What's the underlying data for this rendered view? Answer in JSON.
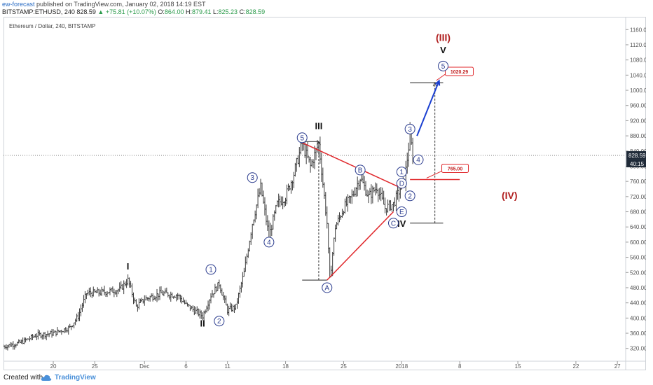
{
  "header": {
    "author": "ew-forecast",
    "published_text": "published on TradingView.com, January 02, 2018 14:19 EST",
    "symbol": "BITSTAMP:ETHUSD, 240",
    "last": "828.59",
    "change": "▲ +75.81 (+10.07%)",
    "o_label": "O:",
    "o": "864.00",
    "h_label": "H:",
    "h": "879.41",
    "l_label": "L:",
    "l": "825.23",
    "c_label": "C:",
    "c": "828.59"
  },
  "chart_title": "Ethereum / Dollar, 240, BITSTAMP",
  "footer": {
    "created": "Created with",
    "brand": "TradingView"
  },
  "colors": {
    "triangle": "#e0272b",
    "target_arrow": "#1a3fd1",
    "wave_red": "#b01e1e",
    "circle": "#2b3c8e",
    "price_label_bg": "#1f2a38"
  },
  "chart_data": {
    "type": "ohlc",
    "title": "Ethereum / Dollar, 240, BITSTAMP",
    "y_axis": {
      "position": "right",
      "range": [
        290,
        1190
      ],
      "ticks": [
        "320.00",
        "360.00",
        "400.00",
        "440.00",
        "480.00",
        "520.00",
        "560.00",
        "600.00",
        "640.00",
        "680.00",
        "720.00",
        "760.00",
        "800.00",
        "840.00",
        "880.00",
        "920.00",
        "960.00",
        "1000.00",
        "1040.00",
        "1080.00",
        "1120.00",
        "1160.00"
      ]
    },
    "x_axis": {
      "range": [
        "2017-11-14",
        "2018-01-28"
      ],
      "ticks": [
        {
          "label": "20",
          "date": "2017-11-20"
        },
        {
          "label": "25",
          "date": "2017-11-25"
        },
        {
          "label": "Dec",
          "date": "2017-12-01"
        },
        {
          "label": "6",
          "date": "2017-12-06"
        },
        {
          "label": "11",
          "date": "2017-12-11"
        },
        {
          "label": "18",
          "date": "2017-12-18"
        },
        {
          "label": "25",
          "date": "2017-12-25"
        },
        {
          "label": "2018",
          "date": "2018-01-01"
        },
        {
          "label": "8",
          "date": "2018-01-08"
        },
        {
          "label": "15",
          "date": "2018-01-15"
        },
        {
          "label": "22",
          "date": "2018-01-22"
        },
        {
          "label": "27",
          "date": "2018-01-27"
        }
      ]
    },
    "price_path": [
      {
        "date": "2017-11-14",
        "price": 325
      },
      {
        "date": "2017-11-16",
        "price": 335
      },
      {
        "date": "2017-11-18",
        "price": 355
      },
      {
        "date": "2017-11-20",
        "price": 360
      },
      {
        "date": "2017-11-22",
        "price": 375
      },
      {
        "date": "2017-11-23",
        "price": 405
      },
      {
        "date": "2017-11-24",
        "price": 465
      },
      {
        "date": "2017-11-26",
        "price": 468
      },
      {
        "date": "2017-11-28",
        "price": 475
      },
      {
        "date": "2017-11-29",
        "price": 500
      },
      {
        "date": "2017-11-30",
        "price": 430
      },
      {
        "date": "2017-12-01",
        "price": 450
      },
      {
        "date": "2017-12-03",
        "price": 465
      },
      {
        "date": "2017-12-05",
        "price": 460
      },
      {
        "date": "2017-12-06",
        "price": 435
      },
      {
        "date": "2017-12-07",
        "price": 420
      },
      {
        "date": "2017-12-08",
        "price": 405
      },
      {
        "date": "2017-12-09",
        "price": 460
      },
      {
        "date": "2017-12-10",
        "price": 490
      },
      {
        "date": "2017-12-11",
        "price": 420
      },
      {
        "date": "2017-12-12",
        "price": 430
      },
      {
        "date": "2017-12-13",
        "price": 520
      },
      {
        "date": "2017-12-14",
        "price": 650
      },
      {
        "date": "2017-12-15",
        "price": 745
      },
      {
        "date": "2017-12-16",
        "price": 615
      },
      {
        "date": "2017-12-17",
        "price": 700
      },
      {
        "date": "2017-12-18",
        "price": 720
      },
      {
        "date": "2017-12-19",
        "price": 780
      },
      {
        "date": "2017-12-20",
        "price": 860
      },
      {
        "date": "2017-12-21",
        "price": 800
      },
      {
        "date": "2017-12-22",
        "price": 860
      },
      {
        "date": "2017-12-23",
        "price": 650
      },
      {
        "date": "2017-12-23",
        "price": 500
      },
      {
        "date": "2017-12-24",
        "price": 640
      },
      {
        "date": "2017-12-25",
        "price": 690
      },
      {
        "date": "2017-12-26",
        "price": 720
      },
      {
        "date": "2017-12-27",
        "price": 770
      },
      {
        "date": "2017-12-28",
        "price": 720
      },
      {
        "date": "2017-12-29",
        "price": 745
      },
      {
        "date": "2017-12-30",
        "price": 690
      },
      {
        "date": "2017-12-31",
        "price": 700
      },
      {
        "date": "2018-01-01",
        "price": 750
      },
      {
        "date": "2018-01-01",
        "price": 760
      },
      {
        "date": "2018-01-02",
        "price": 880
      },
      {
        "date": "2018-01-02",
        "price": 828.59
      }
    ],
    "wave_labels": [
      {
        "text": "I",
        "date": "2017-11-29",
        "price": 528
      },
      {
        "text": "II",
        "date": "2017-12-08",
        "price": 378
      },
      {
        "text": "III",
        "date": "2017-12-22",
        "price": 898
      },
      {
        "text": "IV",
        "date": "2018-01-01",
        "price": 640
      },
      {
        "text": "V",
        "date": "2018-01-06",
        "price": 1098
      },
      {
        "text": "(III)",
        "date": "2018-01-06",
        "price": 1130
      },
      {
        "text": "(IV)",
        "date": "2018-01-14",
        "price": 714
      }
    ],
    "circled_labels": [
      {
        "text": "1",
        "date": "2017-12-09",
        "price": 528
      },
      {
        "text": "2",
        "date": "2017-12-10",
        "price": 392
      },
      {
        "text": "3",
        "date": "2017-12-14",
        "price": 770
      },
      {
        "text": "4",
        "date": "2017-12-16",
        "price": 600
      },
      {
        "text": "5",
        "date": "2017-12-20",
        "price": 875
      },
      {
        "text": "A",
        "date": "2017-12-23",
        "price": 480
      },
      {
        "text": "B",
        "date": "2017-12-27",
        "price": 790
      },
      {
        "text": "C",
        "date": "2017-12-31",
        "price": 650
      },
      {
        "text": "D",
        "date": "2018-01-01",
        "price": 755
      },
      {
        "text": "E",
        "date": "2018-01-01",
        "price": 680
      },
      {
        "text": "1",
        "date": "2018-01-01",
        "price": 785
      },
      {
        "text": "2",
        "date": "2018-01-02",
        "price": 722
      },
      {
        "text": "3",
        "date": "2018-01-02",
        "price": 898
      },
      {
        "text": "4",
        "date": "2018-01-03",
        "price": 817
      },
      {
        "text": "5",
        "date": "2018-01-06",
        "price": 1064
      }
    ],
    "triangle_lines": [
      [
        {
          "date": "2017-12-20",
          "price": 862
        },
        {
          "date": "2018-01-01",
          "price": 742
        }
      ],
      [
        {
          "date": "2017-12-23",
          "price": 500
        },
        {
          "date": "2017-12-31",
          "price": 680
        }
      ]
    ],
    "horizontal_segments": [
      {
        "from": "2017-12-20",
        "to": "2017-12-22",
        "price": 865
      },
      {
        "from": "2017-12-20",
        "to": "2017-12-23",
        "price": 500
      },
      {
        "from": "2018-01-02",
        "to": "2018-01-06",
        "price": 650
      },
      {
        "from": "2018-01-02",
        "to": "2018-01-06",
        "price": 1020
      }
    ],
    "vertical_measures": [
      {
        "date": "2017-12-22",
        "from": 500,
        "to": 865
      },
      {
        "date": "2018-01-05",
        "from": 650,
        "to": 1020
      }
    ],
    "price_levels": [
      {
        "label": "765.00",
        "price": 765,
        "from": "2018-01-02",
        "to": "2018-01-08"
      },
      {
        "label": "1020.29",
        "price": 1020.29
      }
    ],
    "target_arrow": {
      "from": {
        "date": "2018-01-02",
        "price": 880
      },
      "to": {
        "date": "2018-01-05",
        "price": 1025
      }
    },
    "current_price": {
      "label": "828.59",
      "price": 828.59,
      "timer": "40:15"
    }
  }
}
